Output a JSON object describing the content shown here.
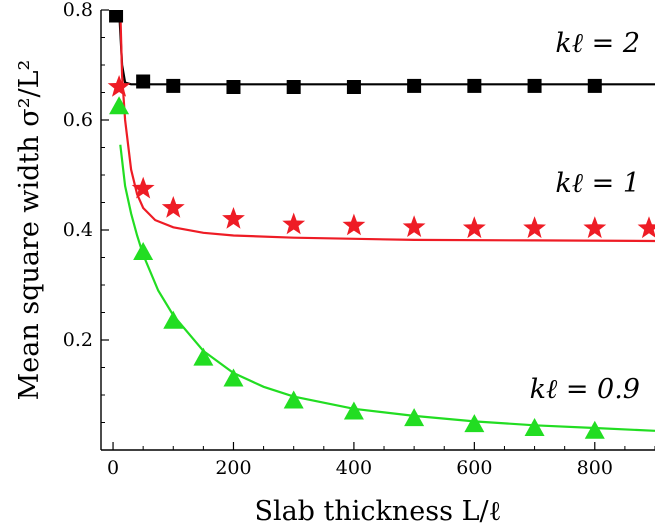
{
  "chart_data": {
    "type": "scatter",
    "title": "",
    "xlabel": "Slab thickness L/ℓ",
    "ylabel": "Mean square width σ²/L²",
    "xlim": [
      -20,
      900
    ],
    "ylim": [
      0,
      0.8
    ],
    "xticks": [
      0,
      200,
      400,
      600,
      800
    ],
    "yticks": [
      0.2,
      0.4,
      0.6,
      0.8
    ],
    "xtick_labels": [
      "0",
      "200",
      "400",
      "600",
      "800"
    ],
    "ytick_labels": [
      "0.2",
      "0.4",
      "0.6",
      "0.8"
    ],
    "grid": false,
    "series": [
      {
        "name": "kℓ = 2",
        "color": "#000000",
        "marker": "square",
        "points": [
          [
            5,
            0.79
          ],
          [
            50,
            0.67
          ],
          [
            100,
            0.662
          ],
          [
            200,
            0.66
          ],
          [
            300,
            0.66
          ],
          [
            400,
            0.66
          ],
          [
            500,
            0.662
          ],
          [
            600,
            0.662
          ],
          [
            700,
            0.662
          ],
          [
            800,
            0.662
          ]
        ],
        "fit": [
          [
            10,
            0.8
          ],
          [
            15,
            0.7
          ],
          [
            20,
            0.668
          ],
          [
            30,
            0.665
          ],
          [
            100,
            0.665
          ],
          [
            500,
            0.665
          ],
          [
            900,
            0.665
          ]
        ]
      },
      {
        "name": "kℓ = 1",
        "color": "#ee1c25",
        "marker": "star",
        "points": [
          [
            10,
            0.66
          ],
          [
            50,
            0.475
          ],
          [
            100,
            0.44
          ],
          [
            200,
            0.42
          ],
          [
            300,
            0.41
          ],
          [
            400,
            0.408
          ],
          [
            500,
            0.405
          ],
          [
            600,
            0.403
          ],
          [
            700,
            0.403
          ],
          [
            800,
            0.403
          ],
          [
            890,
            0.403
          ]
        ],
        "fit": [
          [
            12,
            0.8
          ],
          [
            15,
            0.68
          ],
          [
            20,
            0.6
          ],
          [
            30,
            0.51
          ],
          [
            40,
            0.465
          ],
          [
            50,
            0.44
          ],
          [
            70,
            0.418
          ],
          [
            100,
            0.405
          ],
          [
            150,
            0.395
          ],
          [
            200,
            0.39
          ],
          [
            300,
            0.386
          ],
          [
            500,
            0.382
          ],
          [
            700,
            0.381
          ],
          [
            900,
            0.38
          ]
        ]
      },
      {
        "name": "kℓ = 0.9",
        "color": "#22dd22",
        "marker": "triangle",
        "points": [
          [
            10,
            0.625
          ],
          [
            50,
            0.36
          ],
          [
            100,
            0.235
          ],
          [
            150,
            0.168
          ],
          [
            200,
            0.13
          ],
          [
            300,
            0.09
          ],
          [
            400,
            0.07
          ],
          [
            500,
            0.058
          ],
          [
            600,
            0.047
          ],
          [
            700,
            0.04
          ],
          [
            800,
            0.035
          ]
        ],
        "fit": [
          [
            12,
            0.555
          ],
          [
            20,
            0.48
          ],
          [
            30,
            0.43
          ],
          [
            40,
            0.39
          ],
          [
            50,
            0.355
          ],
          [
            75,
            0.29
          ],
          [
            100,
            0.245
          ],
          [
            150,
            0.18
          ],
          [
            200,
            0.14
          ],
          [
            250,
            0.115
          ],
          [
            300,
            0.097
          ],
          [
            400,
            0.075
          ],
          [
            500,
            0.062
          ],
          [
            600,
            0.052
          ],
          [
            700,
            0.045
          ],
          [
            800,
            0.04
          ],
          [
            900,
            0.035
          ]
        ]
      }
    ]
  }
}
